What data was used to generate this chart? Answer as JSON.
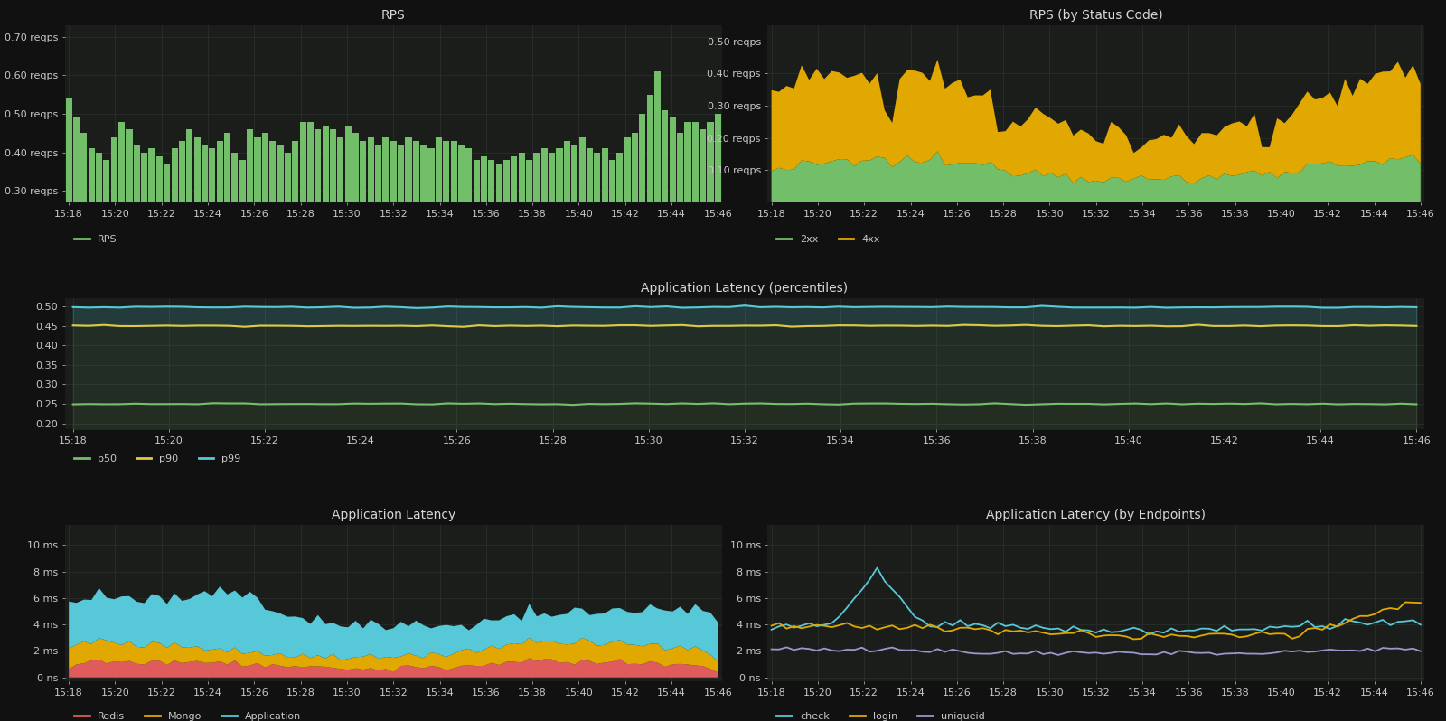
{
  "bg_color": "#111111",
  "panel_bg": "#1a1d1a",
  "grid_color": "#2a2e2a",
  "text_color": "#c8c8c8",
  "title_color": "#d8d8d8",
  "rps_bar_color": "#73bf69",
  "rps_ylabel_ticks": [
    "0.30 reqps",
    "0.40 reqps",
    "0.50 reqps",
    "0.60 reqps",
    "0.70 reqps"
  ],
  "rps_yticks": [
    0.3,
    0.4,
    0.5,
    0.6,
    0.7
  ],
  "rps_ylim": [
    0.27,
    0.73
  ],
  "rps2_colors": {
    "2xx": "#73bf69",
    "4xx": "#e0a800"
  },
  "rps2_ylabel_ticks": [
    "0.10 reqps",
    "0.20 reqps",
    "0.30 reqps",
    "0.40 reqps",
    "0.50 reqps"
  ],
  "rps2_yticks": [
    0.1,
    0.2,
    0.3,
    0.4,
    0.5
  ],
  "rps2_ylim": [
    0.0,
    0.55
  ],
  "lat_colors": {
    "p50": "#73bf69",
    "p90": "#e0c840",
    "p99": "#56c8d8"
  },
  "lat_yticks": [
    0.2,
    0.25,
    0.3,
    0.35,
    0.4,
    0.45,
    0.5
  ],
  "lat_ylim": [
    0.185,
    0.52
  ],
  "appLat_colors": {
    "Redis": "#e05c5c",
    "Mongo": "#e0a800",
    "Application": "#56c8d8"
  },
  "appLat_yticks": [
    0,
    2,
    4,
    6,
    8,
    10
  ],
  "appLat_ylim": [
    -0.3,
    11.5
  ],
  "endpLat_colors": {
    "check": "#56c8d8",
    "login": "#e0a800",
    "uniqueid": "#9898cc"
  },
  "endpLat_yticks": [
    0,
    2,
    4,
    6,
    8,
    10
  ],
  "endpLat_ylim": [
    -0.3,
    11.5
  ],
  "x_labels": [
    "15:18",
    "15:20",
    "15:22",
    "15:24",
    "15:26",
    "15:28",
    "15:30",
    "15:32",
    "15:34",
    "15:36",
    "15:38",
    "15:40",
    "15:42",
    "15:44",
    "15:46"
  ],
  "n_points": 87
}
